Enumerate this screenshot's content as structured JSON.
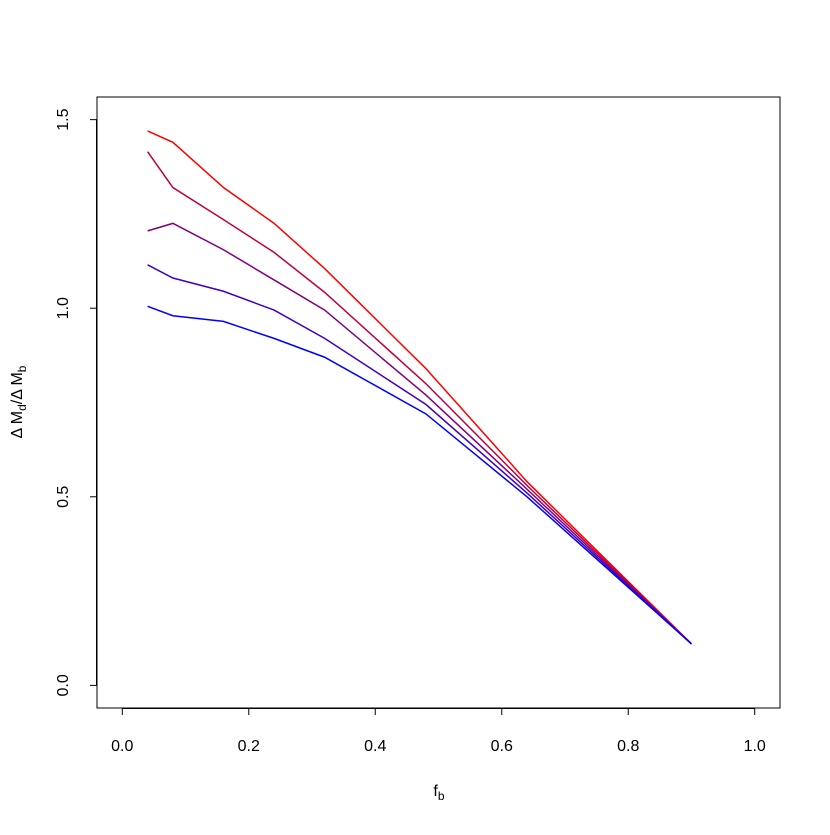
{
  "chart_data": {
    "type": "line",
    "xlabel": [
      "f",
      "b"
    ],
    "ylabel": [
      "Δ M",
      "d",
      "/Δ M",
      "b"
    ],
    "x": [
      0.04,
      0.08,
      0.16,
      0.24,
      0.32,
      0.48,
      0.64,
      0.9
    ],
    "series": [
      {
        "color": "#ff0000",
        "values": [
          1.47,
          1.44,
          1.32,
          1.225,
          1.105,
          0.84,
          0.54,
          0.11
        ]
      },
      {
        "color": "#bf003f",
        "values": [
          1.415,
          1.32,
          1.235,
          1.148,
          1.042,
          0.8,
          0.53,
          0.11
        ]
      },
      {
        "color": "#7f007f",
        "values": [
          1.205,
          1.225,
          1.155,
          1.075,
          0.995,
          0.77,
          0.52,
          0.11
        ]
      },
      {
        "color": "#3f00bf",
        "values": [
          1.115,
          1.08,
          1.045,
          0.995,
          0.92,
          0.745,
          0.51,
          0.11
        ]
      },
      {
        "color": "#0000ff",
        "values": [
          1.005,
          0.98,
          0.965,
          0.92,
          0.87,
          0.72,
          0.5,
          0.11
        ]
      }
    ],
    "xlim": [
      -0.04,
      1.04
    ],
    "ylim": [
      -0.06,
      1.56
    ],
    "xticks": [
      {
        "value": 0,
        "label": "0.0"
      },
      0.2,
      0.4,
      0.6,
      0.8,
      {
        "value": 1,
        "label": "1.0"
      }
    ],
    "yticks": [
      {
        "value": 0,
        "label": "0.0"
      },
      0.5,
      {
        "value": 1,
        "label": "1.0"
      },
      {
        "value": 1.5,
        "label": "1.5"
      }
    ]
  }
}
